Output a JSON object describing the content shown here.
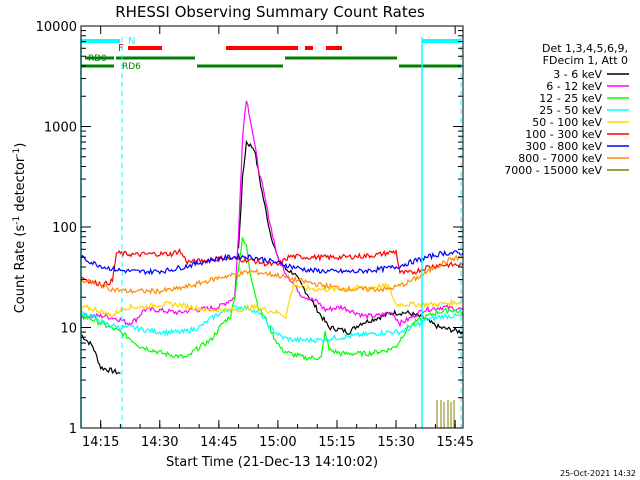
{
  "chart_data": {
    "type": "line",
    "title": "RHESSI Observing Summary Count Rates",
    "xlabel": "Start Time (21-Dec-13 14:10:02)",
    "ylabel": "Count Rate (s⁻¹ detector⁻¹)",
    "ylabel_parts": {
      "main": "Count Rate (s",
      "exp1": "-1",
      "mid": " detector",
      "exp2": "-1",
      "end": ")"
    },
    "xlim_minutes": [
      0,
      97
    ],
    "ylim": [
      1,
      10000
    ],
    "yscale": "log",
    "x_ticks": [
      {
        "m": 5,
        "label": "14:15"
      },
      {
        "m": 20,
        "label": "14:30"
      },
      {
        "m": 35,
        "label": "14:45"
      },
      {
        "m": 50,
        "label": "15:00"
      },
      {
        "m": 65,
        "label": "15:15"
      },
      {
        "m": 80,
        "label": "15:30"
      },
      {
        "m": 95,
        "label": "15:45"
      }
    ],
    "y_ticks": [
      {
        "v": 1,
        "label": "1"
      },
      {
        "v": 10,
        "label": "10"
      },
      {
        "v": 100,
        "label": "100"
      },
      {
        "v": 1000,
        "label": "1000"
      },
      {
        "v": 10000,
        "label": "10000"
      }
    ],
    "legend_header": [
      "Det 1,3,4,5,6,9,",
      "FDecim 1, Att 0"
    ],
    "legend_position": "right",
    "series": [
      {
        "name": "3 - 6 keV",
        "color": "#000000",
        "points": [
          [
            0,
            8.5
          ],
          [
            3,
            6.5
          ],
          [
            5,
            4
          ],
          [
            10,
            3.5
          ],
          [
            10.5,
            null
          ],
          [
            40,
            60
          ],
          [
            41,
            300
          ],
          [
            42,
            700
          ],
          [
            44,
            600
          ],
          [
            46,
            220
          ],
          [
            48,
            90
          ],
          [
            50,
            48
          ],
          [
            52,
            38
          ],
          [
            54,
            35
          ],
          [
            58,
            20
          ],
          [
            61,
            13
          ],
          [
            63,
            10
          ],
          [
            66,
            9.5
          ],
          [
            68,
            9
          ],
          [
            71,
            11
          ],
          [
            74,
            12
          ],
          [
            79,
            14
          ],
          [
            83,
            14
          ],
          [
            87,
            12.5
          ],
          [
            89,
            11
          ],
          [
            91,
            10
          ],
          [
            97,
            9
          ]
        ]
      },
      {
        "name": "6 - 12 keV",
        "color": "#ff00ff",
        "points": [
          [
            0,
            13
          ],
          [
            3,
            13
          ],
          [
            6,
            13
          ],
          [
            10,
            12
          ],
          [
            12,
            11
          ],
          [
            14,
            12
          ],
          [
            16,
            15
          ],
          [
            19,
            15
          ],
          [
            25,
            14
          ],
          [
            28,
            15
          ],
          [
            30,
            15
          ],
          [
            35,
            16
          ],
          [
            39,
            20
          ],
          [
            40,
            80
          ],
          [
            41,
            800
          ],
          [
            42,
            1900
          ],
          [
            43,
            1200
          ],
          [
            45,
            400
          ],
          [
            48,
            110
          ],
          [
            50,
            48
          ],
          [
            52,
            35
          ],
          [
            54,
            27
          ],
          [
            56,
            21
          ],
          [
            60,
            18
          ],
          [
            62,
            15
          ],
          [
            66,
            16
          ],
          [
            68,
            15
          ],
          [
            72,
            13
          ],
          [
            75,
            13
          ],
          [
            79,
            14
          ],
          [
            81,
            11
          ],
          [
            83,
            12
          ],
          [
            87,
            15
          ],
          [
            92,
            16
          ],
          [
            97,
            15
          ]
        ]
      },
      {
        "name": "12 - 25 keV",
        "color": "#00ff00",
        "points": [
          [
            0,
            13
          ],
          [
            3,
            12
          ],
          [
            5,
            11
          ],
          [
            10,
            9
          ],
          [
            12,
            8
          ],
          [
            15,
            6.5
          ],
          [
            21,
            5.5
          ],
          [
            27,
            5
          ],
          [
            29,
            6
          ],
          [
            33,
            7.5
          ],
          [
            36,
            11
          ],
          [
            38,
            13
          ],
          [
            39,
            20
          ],
          [
            40,
            40
          ],
          [
            41,
            75
          ],
          [
            42,
            65
          ],
          [
            43,
            35
          ],
          [
            45,
            16
          ],
          [
            47,
            12
          ],
          [
            49,
            8
          ],
          [
            51,
            6
          ],
          [
            53,
            5.5
          ],
          [
            57,
            5
          ],
          [
            61,
            5
          ],
          [
            62,
            9
          ],
          [
            63,
            6
          ],
          [
            66,
            5.5
          ],
          [
            73,
            5.5
          ],
          [
            78,
            6
          ],
          [
            80,
            6.5
          ],
          [
            83,
            10
          ],
          [
            86,
            12
          ],
          [
            90,
            14
          ],
          [
            94,
            15
          ],
          [
            97,
            14
          ]
        ]
      },
      {
        "name": "25 - 50 keV",
        "color": "#00ffff",
        "points": [
          [
            0,
            14
          ],
          [
            3,
            13
          ],
          [
            6,
            11
          ],
          [
            10,
            10
          ],
          [
            13,
            10
          ],
          [
            16,
            9.5
          ],
          [
            20,
            9
          ],
          [
            26,
            9
          ],
          [
            30,
            10
          ],
          [
            34,
            13
          ],
          [
            37,
            15
          ],
          [
            40,
            16
          ],
          [
            43,
            15.5
          ],
          [
            46,
            13
          ],
          [
            48,
            10
          ],
          [
            51,
            8
          ],
          [
            54,
            7.5
          ],
          [
            60,
            7.5
          ],
          [
            66,
            8
          ],
          [
            72,
            8.5
          ],
          [
            78,
            9
          ],
          [
            81,
            9
          ],
          [
            84,
            10
          ],
          [
            88,
            12
          ],
          [
            92,
            13
          ],
          [
            97,
            13
          ]
        ]
      },
      {
        "name": "50 - 100 keV",
        "color": "#ffd700",
        "points": [
          [
            0,
            16
          ],
          [
            4,
            15
          ],
          [
            8,
            13
          ],
          [
            10,
            15
          ],
          [
            12,
            16
          ],
          [
            16,
            16
          ],
          [
            20,
            17
          ],
          [
            24,
            17
          ],
          [
            28,
            16
          ],
          [
            32,
            15
          ],
          [
            36,
            15
          ],
          [
            40,
            15
          ],
          [
            44,
            16
          ],
          [
            47,
            15
          ],
          [
            50,
            14
          ],
          [
            52,
            13
          ],
          [
            54,
            27
          ],
          [
            56,
            25
          ],
          [
            60,
            24
          ],
          [
            66,
            24
          ],
          [
            72,
            25
          ],
          [
            78,
            26
          ],
          [
            80,
            17
          ],
          [
            84,
            17
          ],
          [
            90,
            17
          ],
          [
            97,
            18
          ]
        ]
      },
      {
        "name": "100 - 300 keV",
        "color": "#ff0000",
        "points": [
          [
            0,
            32
          ],
          [
            3,
            28
          ],
          [
            6,
            27
          ],
          [
            8,
            29
          ],
          [
            9,
            55
          ],
          [
            14,
            53
          ],
          [
            18,
            54
          ],
          [
            23,
            54
          ],
          [
            25,
            58
          ],
          [
            27,
            45
          ],
          [
            31,
            46
          ],
          [
            36,
            49
          ],
          [
            40,
            48
          ],
          [
            44,
            46
          ],
          [
            47,
            43
          ],
          [
            50,
            42
          ],
          [
            53,
            51
          ],
          [
            58,
            50
          ],
          [
            66,
            50
          ],
          [
            74,
            52
          ],
          [
            80,
            57
          ],
          [
            81,
            35
          ],
          [
            84,
            35
          ],
          [
            88,
            40
          ],
          [
            91,
            42
          ],
          [
            97,
            42
          ]
        ]
      },
      {
        "name": "300 - 800 keV",
        "color": "#0000ff",
        "points": [
          [
            0,
            50
          ],
          [
            3,
            44
          ],
          [
            6,
            40
          ],
          [
            10,
            37
          ],
          [
            14,
            36
          ],
          [
            18,
            36
          ],
          [
            22,
            37
          ],
          [
            26,
            40
          ],
          [
            30,
            44
          ],
          [
            34,
            48
          ],
          [
            38,
            50
          ],
          [
            42,
            51
          ],
          [
            46,
            48
          ],
          [
            50,
            44
          ],
          [
            54,
            40
          ],
          [
            58,
            37
          ],
          [
            64,
            36
          ],
          [
            70,
            36
          ],
          [
            76,
            38
          ],
          [
            80,
            40
          ],
          [
            84,
            45
          ],
          [
            88,
            50
          ],
          [
            92,
            55
          ],
          [
            97,
            55
          ]
        ]
      },
      {
        "name": "800 - 7000 keV",
        "color": "#ff8c00",
        "points": [
          [
            0,
            30
          ],
          [
            4,
            27
          ],
          [
            8,
            24
          ],
          [
            12,
            23
          ],
          [
            16,
            23
          ],
          [
            20,
            23
          ],
          [
            24,
            24
          ],
          [
            28,
            26
          ],
          [
            32,
            29
          ],
          [
            36,
            32
          ],
          [
            40,
            34
          ],
          [
            43,
            36
          ],
          [
            46,
            35
          ],
          [
            50,
            33
          ],
          [
            54,
            30
          ],
          [
            58,
            28
          ],
          [
            62,
            26
          ],
          [
            68,
            24
          ],
          [
            74,
            24
          ],
          [
            78,
            24
          ],
          [
            82,
            27
          ],
          [
            86,
            32
          ],
          [
            90,
            40
          ],
          [
            94,
            48
          ],
          [
            97,
            50
          ]
        ]
      },
      {
        "name": "7000 - 15000 keV",
        "color": "#808000",
        "points": []
      }
    ],
    "annotations": {
      "night_label": "N",
      "flare_label": "F",
      "decim_labels": [
        "RD0",
        "RD6"
      ],
      "corner_timestamp": "25-Oct-2021 14:32"
    }
  }
}
